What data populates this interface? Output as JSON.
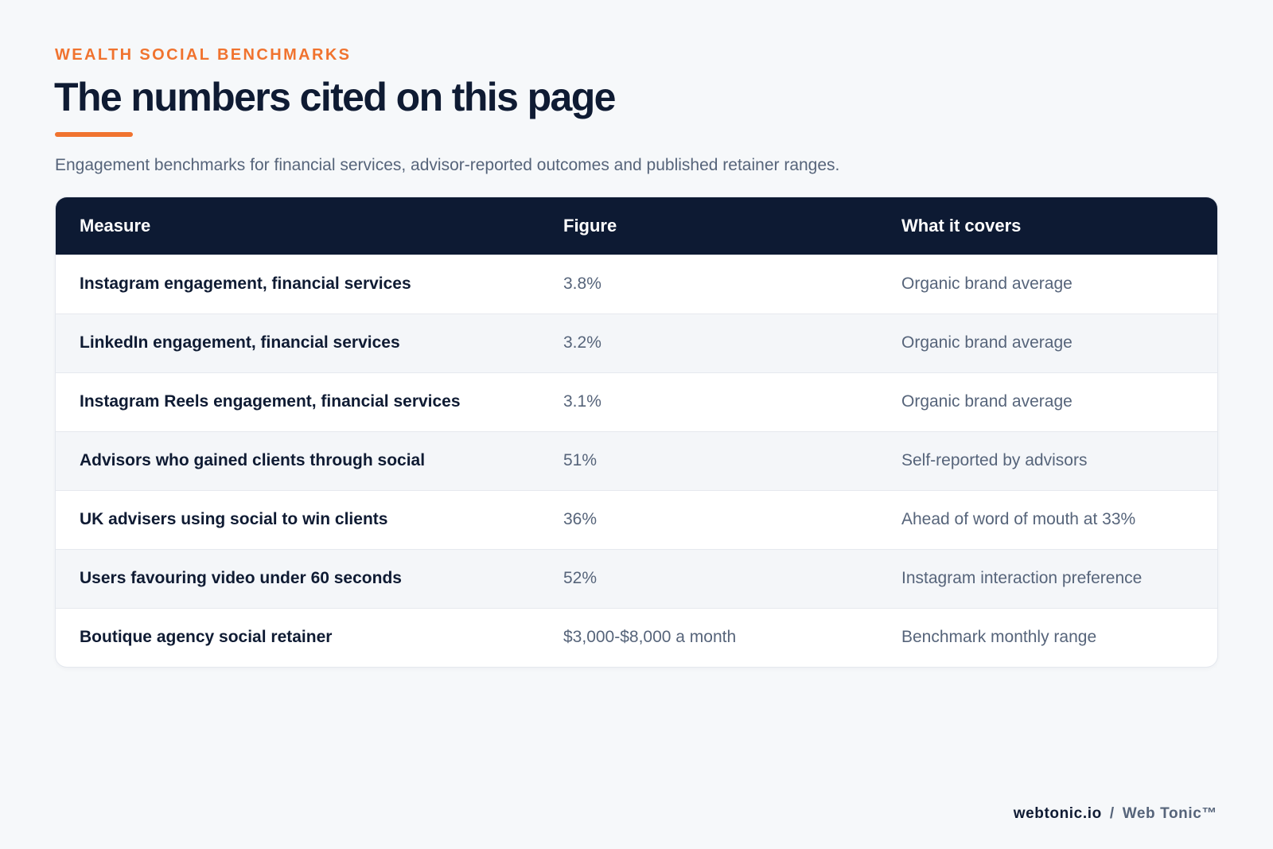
{
  "header": {
    "eyebrow": "WEALTH SOCIAL BENCHMARKS",
    "title": "The numbers cited on this page",
    "subtitle": "Engagement benchmarks for financial services, advisor-reported outcomes and published retainer ranges."
  },
  "table": {
    "columns": [
      "Measure",
      "Figure",
      "What it covers"
    ],
    "rows": [
      {
        "measure": "Instagram engagement, financial services",
        "figure": "3.8%",
        "covers": "Organic brand average"
      },
      {
        "measure": "LinkedIn engagement, financial services",
        "figure": "3.2%",
        "covers": "Organic brand average"
      },
      {
        "measure": "Instagram Reels engagement, financial services",
        "figure": "3.1%",
        "covers": "Organic brand average"
      },
      {
        "measure": "Advisors who gained clients through social",
        "figure": "51%",
        "covers": "Self-reported by advisors"
      },
      {
        "measure": "UK advisers using social to win clients",
        "figure": "36%",
        "covers": "Ahead of word of mouth at 33%"
      },
      {
        "measure": "Users favouring video under 60 seconds",
        "figure": "52%",
        "covers": "Instagram interaction preference"
      },
      {
        "measure": "Boutique agency social retainer",
        "figure": "$3,000-$8,000 a month",
        "covers": "Benchmark monthly range"
      }
    ]
  },
  "footer": {
    "domain": "webtonic.io",
    "separator": "/",
    "brand": "Web Tonic™"
  },
  "colors": {
    "accent": "#f0732f",
    "header_bg": "#0d1a33",
    "page_bg": "#f6f8fa",
    "text_dark": "#0f1b33",
    "text_muted": "#56647a"
  }
}
